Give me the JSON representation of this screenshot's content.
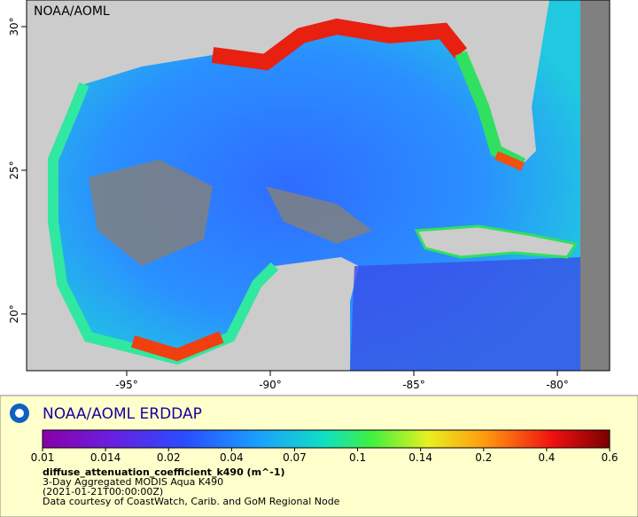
{
  "map": {
    "label": "NOAA/AOML",
    "lat_ticks": [
      {
        "value": 30,
        "label": "30°"
      },
      {
        "value": 25,
        "label": "25°"
      },
      {
        "value": 20,
        "label": "20°"
      }
    ],
    "lon_ticks": [
      {
        "value": -95,
        "label": "-95°"
      },
      {
        "value": -90,
        "label": "-90°"
      },
      {
        "value": -85,
        "label": "-85°"
      },
      {
        "value": -80,
        "label": "-80°"
      }
    ]
  },
  "legend": {
    "title": "NOAA/AOML ERDDAP",
    "colorbar_ticks": [
      0.01,
      0.014,
      0.02,
      0.04,
      0.07,
      0.1,
      0.14,
      0.2,
      0.4,
      0.6
    ],
    "variable": "diffuse_attenuation_coefficient_k490 (m^-1)",
    "dataset": "3-Day Aggregated MODIS Aqua K490",
    "time": "(2021-01-21T00:00:00Z)",
    "credit": "Data courtesy of CoastWatch, Carib. and GoM Regional Node"
  }
}
